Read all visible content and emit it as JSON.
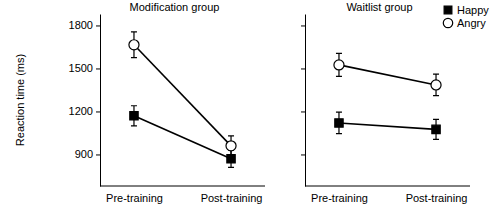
{
  "chart_data": [
    {
      "type": "line",
      "title": "Modification group",
      "y_label": "Reaction time (ms)",
      "categories": [
        "Pre-training",
        "Post-training"
      ],
      "series": [
        {
          "color": "#000000",
          "marker": "square",
          "values": [
            1170,
            870
          ],
          "errors": [
            70,
            60
          ]
        },
        {
          "color": "#000000",
          "marker": "open-circle",
          "values": [
            1665,
            960
          ],
          "errors": [
            90,
            70
          ]
        }
      ],
      "ylim": [
        680,
        1880
      ],
      "yticks": [
        900,
        1200,
        1500,
        1800
      ]
    },
    {
      "type": "line",
      "title": "Waitlist group",
      "categories": [
        "Pre-training",
        "Post-training"
      ],
      "series": [
        {
          "name": "Happy",
          "color": "#000000",
          "marker": "square",
          "values": [
            1120,
            1075
          ],
          "errors": [
            75,
            70
          ]
        },
        {
          "name": "Angry",
          "color": "#000000",
          "marker": "open-circle",
          "values": [
            1525,
            1385
          ],
          "errors": [
            80,
            75
          ]
        }
      ],
      "ylim": [
        680,
        1880
      ],
      "yticks": [
        900,
        1200,
        1500,
        1800
      ],
      "tick_labels": "x",
      "legend": "upper right"
    }
  ]
}
